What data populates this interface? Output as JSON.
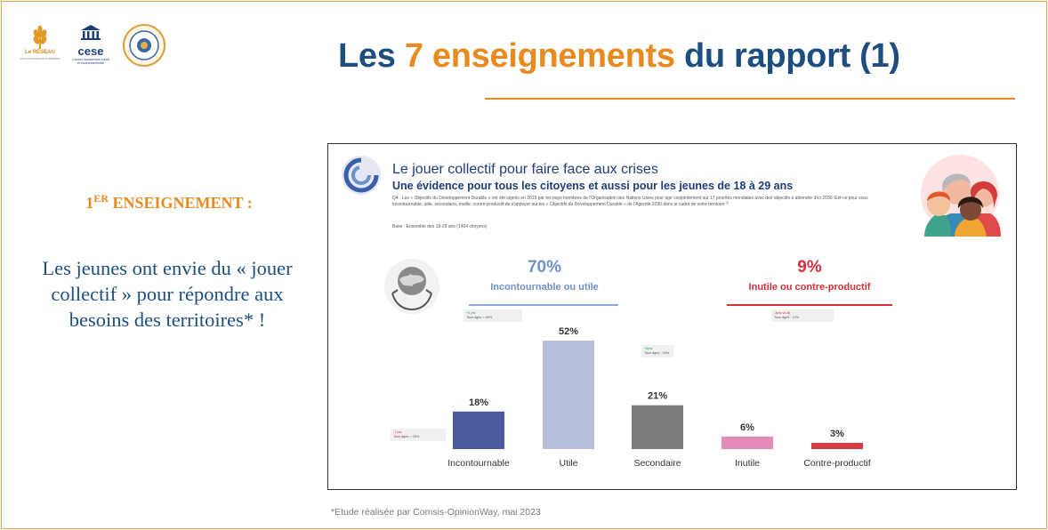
{
  "logos": {
    "reseau_name": "Le RÉSEAU",
    "reseau_sub": "ses communes solidaires",
    "cese_word": "cese",
    "cese_sub": "Conseil économique social et environnemental"
  },
  "header": {
    "title_part1": "Les ",
    "title_accent": "7 enseignements",
    "title_part2": " du rapport (1)"
  },
  "lesson": {
    "number": "1",
    "number_sup": "ER",
    "label": " ENSEIGNEMENT :",
    "text": "Les jeunes ont envie du « jouer collectif » pour répondre aux besoins des territoires* !"
  },
  "chart_panel": {
    "title": "Le jouer collectif pour faire face aux crises",
    "subtitle": "Une évidence pour tous les citoyens et aussi pour les jeunes de 18 à 29 ans",
    "question": "Q4 : Les « Objectifs du Développement Durable » ont été signés en 2015 par les pays membres de l'Organisation des Nations Unies pour agir conjointement sur 17 priorités mondiales avec des objectifs à atteindre d'ici 2030. Est-ce pour vous incontournable, utile, secondaire, inutile, contre-productif de s'appuyer sur les « Objectifs du Développement Durable » de l'Agenda 2030 dans le cadre de votre territoire ?",
    "base": "Base : Ensemble des 18-29 ans (1404 citoyens)",
    "group_positive": {
      "percent": "70%",
      "label": "Incontournable ou utile",
      "note_delta": "+1 pts",
      "note_all": "Tous âges = 69%"
    },
    "group_negative": {
      "percent": "9%",
      "label": "Inutile ou contre-productif",
      "note_delta": "-3pts vs all",
      "note_all": "Tous âges : 12%"
    },
    "note_incontournable": {
      "delta": "-7 pts",
      "all": "Tous âges = 25%"
    },
    "note_secondaire": {
      "delta": "+5pts",
      "all": "Tous âges : 16%"
    }
  },
  "chart_data": {
    "type": "bar",
    "categories": [
      "Incontournable",
      "Utile",
      "Secondaire",
      "Inutile",
      "Contre-productif"
    ],
    "values": [
      18,
      52,
      21,
      6,
      3
    ],
    "value_labels": [
      "18%",
      "52%",
      "21%",
      "6%",
      "3%"
    ],
    "title": "Le jouer collectif pour faire face aux crises",
    "subtitle": "Une évidence pour tous les citoyens et aussi pour les jeunes de 18 à 29 ans",
    "xlabel": "",
    "ylabel": "",
    "ylim": [
      0,
      52
    ],
    "grid": false,
    "colors": [
      "#4a5a9a",
      "#b7bfdb",
      "#7b7b7b",
      "#e28bb8",
      "#d23c42"
    ]
  },
  "footnote": "*Etude réalisée par Comsis-OpinionWay, mai 2023",
  "colors": {
    "title_blue": "#1c4e80",
    "accent_orange": "#e88a1f",
    "positive_blue": "#6f8fc8",
    "negative_red": "#d62f3a"
  }
}
